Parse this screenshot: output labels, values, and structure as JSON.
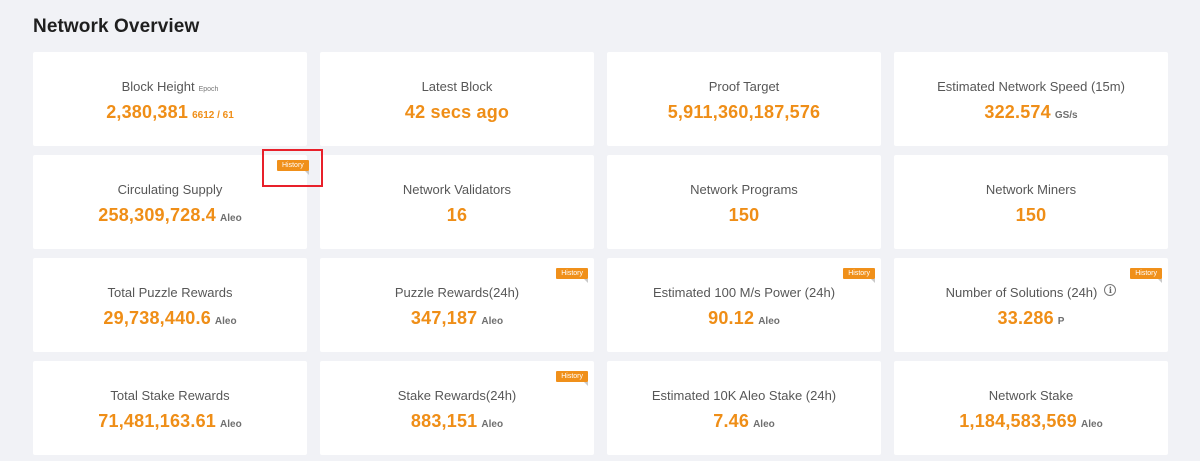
{
  "page": {
    "title": "Network Overview"
  },
  "history_label": "History",
  "cards": [
    {
      "label": "Block Height",
      "label_sub": "Epoch",
      "value": "2,380,381",
      "epoch": "6612 / 61",
      "unit": ""
    },
    {
      "label": "Latest Block",
      "value": "42 secs ago",
      "unit": ""
    },
    {
      "label": "Proof Target",
      "value": "5,911,360,187,576",
      "unit": ""
    },
    {
      "label": "Estimated Network Speed (15m)",
      "value": "322.574",
      "unit": "GS/s"
    },
    {
      "label": "Circulating Supply",
      "value": "258,309,728.4",
      "unit": "Aleo"
    },
    {
      "label": "Network Validators",
      "value": "16",
      "unit": ""
    },
    {
      "label": "Network Programs",
      "value": "150",
      "unit": ""
    },
    {
      "label": "Network Miners",
      "value": "150",
      "unit": ""
    },
    {
      "label": "Total Puzzle Rewards",
      "value": "29,738,440.6",
      "unit": "Aleo"
    },
    {
      "label": "Puzzle Rewards(24h)",
      "value": "347,187",
      "unit": "Aleo"
    },
    {
      "label": "Estimated 100 M/s Power (24h)",
      "value": "90.12",
      "unit": "Aleo"
    },
    {
      "label": "Number of Solutions (24h)",
      "value": "33.286",
      "unit": "P",
      "info_icon": "i"
    },
    {
      "label": "Total Stake Rewards",
      "value": "71,481,163.61",
      "unit": "Aleo"
    },
    {
      "label": "Stake Rewards(24h)",
      "value": "883,151",
      "unit": "Aleo"
    },
    {
      "label": "Estimated 10K Aleo Stake (24h)",
      "value": "7.46",
      "unit": "Aleo"
    },
    {
      "label": "Network Stake",
      "value": "1,184,583,569",
      "unit": "Aleo"
    }
  ],
  "colors": {
    "accent": "#ef8e17",
    "background": "#f1f2f6",
    "highlight": "#e8202a"
  }
}
